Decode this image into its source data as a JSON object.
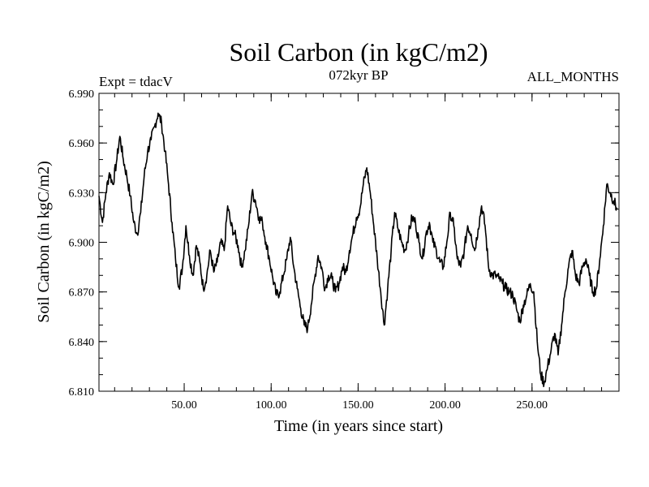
{
  "chart_data": {
    "type": "line",
    "title": "Soil Carbon (in kgC/m2)",
    "subtitle_left": "Expt = tdacV",
    "subtitle_center": "072kyr BP",
    "subtitle_right": "ALL_MONTHS",
    "xlabel": "Time (in years since start)",
    "ylabel": "Soil Carbon (in kgC/m2)",
    "xlim": [
      1,
      300
    ],
    "ylim": [
      6.81,
      6.99
    ],
    "x_ticks": [
      50,
      100,
      150,
      200,
      250
    ],
    "x_tick_labels": [
      "50.00",
      "100.00",
      "150.00",
      "200.00",
      "250.00"
    ],
    "y_ticks": [
      6.81,
      6.84,
      6.87,
      6.9,
      6.93,
      6.96,
      6.99
    ],
    "y_tick_labels": [
      "6.810",
      "6.840",
      "6.870",
      "6.900",
      "6.930",
      "6.960",
      "6.990"
    ],
    "grid": false,
    "series": [
      {
        "name": "Soil Carbon",
        "color": "#000000",
        "x": [
          1,
          3,
          5,
          7,
          9,
          11,
          13,
          15,
          17,
          19,
          21,
          23,
          25,
          27,
          29,
          31,
          33,
          35,
          37,
          39,
          41,
          43,
          45,
          47,
          49,
          51,
          53,
          55,
          57,
          59,
          61,
          63,
          65,
          67,
          69,
          71,
          73,
          75,
          77,
          79,
          81,
          83,
          85,
          87,
          89,
          91,
          93,
          95,
          97,
          99,
          101,
          103,
          105,
          107,
          109,
          111,
          113,
          115,
          117,
          119,
          121,
          123,
          125,
          127,
          129,
          131,
          133,
          135,
          137,
          139,
          141,
          143,
          145,
          147,
          149,
          151,
          153,
          155,
          157,
          159,
          161,
          163,
          165,
          167,
          169,
          171,
          173,
          175,
          177,
          179,
          181,
          183,
          185,
          187,
          189,
          191,
          193,
          195,
          197,
          199,
          201,
          203,
          205,
          207,
          209,
          211,
          213,
          215,
          217,
          219,
          221,
          223,
          225,
          227,
          229,
          231,
          233,
          235,
          237,
          239,
          241,
          243,
          245,
          247,
          249,
          251,
          253,
          255,
          257,
          259,
          261,
          263,
          265,
          267,
          269,
          271,
          273,
          275,
          277,
          279,
          281,
          283,
          285,
          287,
          289,
          291,
          293,
          295,
          297,
          299
        ],
        "values": [
          6.928,
          6.912,
          6.93,
          6.942,
          6.935,
          6.948,
          6.964,
          6.95,
          6.94,
          6.928,
          6.912,
          6.905,
          6.918,
          6.94,
          6.955,
          6.962,
          6.97,
          6.978,
          6.972,
          6.955,
          6.935,
          6.912,
          6.89,
          6.873,
          6.885,
          6.91,
          6.892,
          6.88,
          6.898,
          6.888,
          6.872,
          6.88,
          6.895,
          6.882,
          6.888,
          6.9,
          6.895,
          6.922,
          6.91,
          6.905,
          6.898,
          6.885,
          6.895,
          6.91,
          6.93,
          6.925,
          6.915,
          6.912,
          6.9,
          6.89,
          6.878,
          6.868,
          6.87,
          6.88,
          6.89,
          6.903,
          6.885,
          6.872,
          6.86,
          6.85,
          6.848,
          6.862,
          6.878,
          6.892,
          6.885,
          6.872,
          6.88,
          6.878,
          6.87,
          6.875,
          6.885,
          6.882,
          6.895,
          6.905,
          6.915,
          6.92,
          6.935,
          6.945,
          6.93,
          6.91,
          6.89,
          6.87,
          6.85,
          6.872,
          6.895,
          6.918,
          6.908,
          6.9,
          6.895,
          6.905,
          6.915,
          6.912,
          6.9,
          6.89,
          6.905,
          6.912,
          6.9,
          6.895,
          6.888,
          6.885,
          6.9,
          6.918,
          6.91,
          6.89,
          6.885,
          6.895,
          6.91,
          6.905,
          6.895,
          6.908,
          6.922,
          6.91,
          6.885,
          6.88,
          6.88,
          6.878,
          6.875,
          6.872,
          6.87,
          6.868,
          6.86,
          6.852,
          6.862,
          6.868,
          6.875,
          6.87,
          6.84,
          6.82,
          6.815,
          6.825,
          6.835,
          6.845,
          6.832,
          6.85,
          6.87,
          6.885,
          6.895,
          6.88,
          6.875,
          6.885,
          6.89,
          6.88,
          6.87,
          6.872,
          6.89,
          6.91,
          6.935,
          6.93,
          6.925,
          6.92
        ]
      }
    ]
  }
}
